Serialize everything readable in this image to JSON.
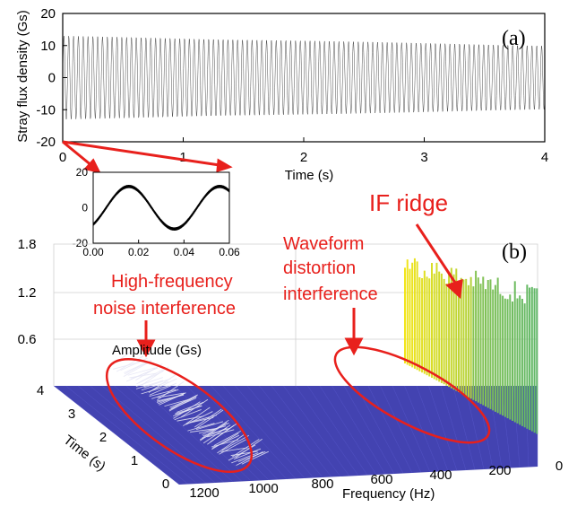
{
  "chart_data": [
    {
      "type": "line",
      "panel_label": "(a)",
      "xlabel": "Time (s)",
      "ylabel": "Stray flux density (Gs)",
      "xlim": [
        0,
        4
      ],
      "ylim": [
        -20,
        20
      ],
      "x_ticks": [
        "0",
        "1",
        "2",
        "3",
        "4"
      ],
      "y_ticks": [
        "20",
        "10",
        "0",
        "-10",
        "-20"
      ],
      "signal": {
        "frequency_hz": 25,
        "amplitude_start": 13,
        "amplitude_end": 10
      },
      "grid": false
    },
    {
      "type": "line",
      "panel": "inset",
      "xlim": [
        0,
        0.06
      ],
      "ylim": [
        -20,
        20
      ],
      "x_ticks": [
        "0.00",
        "0.02",
        "0.04",
        "0.06"
      ],
      "y_ticks": [
        "20",
        "0",
        "-20"
      ],
      "signal": {
        "frequency_hz": 25,
        "amplitude": 12
      }
    },
    {
      "type": "surface",
      "panel_label": "(b)",
      "zlabel": "Amplitude (Gs)",
      "xlabel": "Frequency (Hz)",
      "ylabel": "Time (s)",
      "z_ticks": [
        "1.8",
        "1.2",
        "0.6"
      ],
      "x_ticks": [
        "1200",
        "1000",
        "800",
        "600",
        "400",
        "200",
        "0"
      ],
      "y_ticks": [
        "4",
        "3",
        "2",
        "1",
        "0"
      ],
      "annotations": {
        "hf_line1": "High-frequency",
        "hf_line2": "noise  interference",
        "wd_line1": "Waveform",
        "wd_line2": "distortion",
        "wd_line3": "interference",
        "if_ridge": "IF ridge"
      }
    }
  ],
  "colors": {
    "annotation": "#e8201c",
    "surface_base": "#2f2fa8",
    "ridge_hi": "#f2e51a",
    "ridge_mid": "#1fa38a",
    "trace": "#000000"
  }
}
